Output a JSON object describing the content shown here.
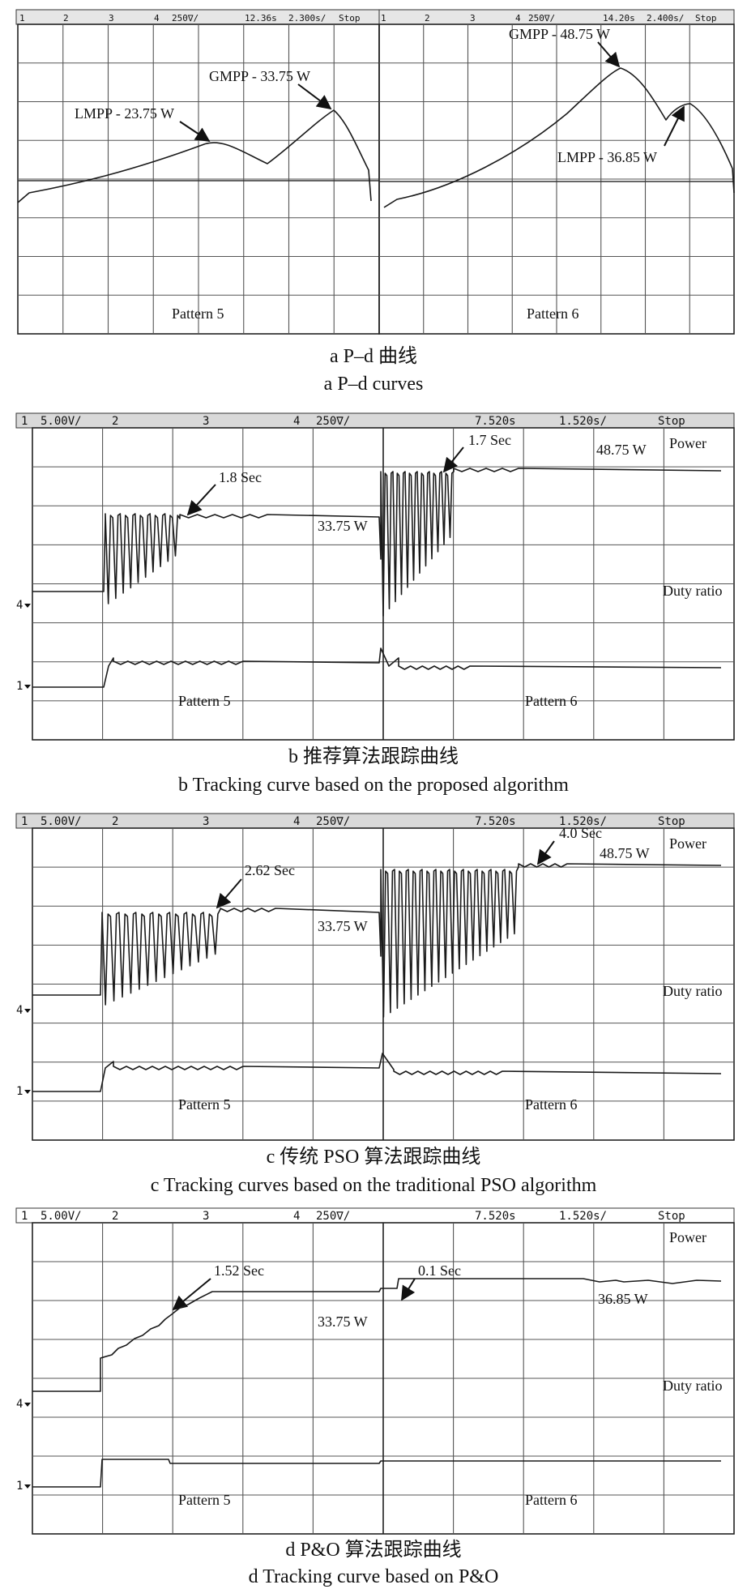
{
  "figure": {
    "a": {
      "caption_cn": "a  P–d 曲线",
      "caption_en": "a  P–d curves",
      "left_header": [
        "1",
        "2",
        "3",
        "4",
        "250∇/",
        "12.36s",
        "2.300s/",
        "Stop"
      ],
      "right_header": [
        "1",
        "2",
        "3",
        "4",
        "250∇/",
        "14.20s",
        "2.400s/",
        "Stop"
      ],
      "left_pattern": "Pattern 5",
      "right_pattern": "Pattern 6",
      "annotations": {
        "lmpp_left": "LMPP - 23.75 W",
        "gmpp_left": "GMPP - 33.75 W",
        "gmpp_right": "GMPP - 48.75 W",
        "lmpp_right": "LMPP - 36.85 W"
      }
    },
    "b": {
      "caption_cn": "b  推荐算法跟踪曲线",
      "caption_en": "b  Tracking curve based on the proposed algorithm",
      "pattern_left": "Pattern 5",
      "pattern_right": "Pattern 6",
      "time_left": "1.8 Sec",
      "time_right": "1.7 Sec",
      "power_left": "33.75 W",
      "power_right": "48.75 W"
    },
    "c": {
      "caption_cn": "c  传统 PSO 算法跟踪曲线",
      "caption_en": "c  Tracking curves based on the traditional PSO algorithm",
      "pattern_left": "Pattern 5",
      "pattern_right": "Pattern 6",
      "time_left": "2.62 Sec",
      "time_right": "4.0 Sec",
      "power_left": "33.75 W",
      "power_right": "48.75 W"
    },
    "d": {
      "caption_cn": "d  P&O 算法跟踪曲线",
      "caption_en": "d Tracking curve based on P&O",
      "pattern_left": "Pattern 5",
      "pattern_right": "Pattern 6",
      "time_left": "1.52 Sec",
      "time_right": "0.1 Sec",
      "power_left": "33.75 W",
      "power_right": "36.85 W"
    },
    "scope_header": [
      "1",
      "5.00V/",
      "2",
      "3",
      "4",
      "250∇/",
      "7.520s",
      "1.520s/",
      "Stop"
    ],
    "labels": {
      "power": "Power",
      "duty": "Duty ratio",
      "ch4": "4",
      "ch1": "1"
    }
  },
  "chart_data": [
    {
      "type": "line",
      "panel": "a-left",
      "title": "",
      "xlabel": "",
      "ylabel": "",
      "series": [
        {
          "name": "",
          "points": [
            {
              "label": "LMPP",
              "value": 23.75
            },
            {
              "label": "GMPP",
              "value": 33.75
            }
          ]
        }
      ],
      "grid": true
    },
    {
      "type": "line",
      "panel": "a-right",
      "title": "",
      "series": [
        {
          "name": "",
          "points": [
            {
              "label": "GMPP",
              "value": 48.75
            },
            {
              "label": "LMPP",
              "value": 36.85
            }
          ]
        }
      ],
      "grid": true
    },
    {
      "type": "line",
      "panel": "b",
      "series": [
        {
          "name": "Power",
          "steady_values_W": [
            33.75,
            48.75
          ],
          "tracking_time_s": [
            1.8,
            1.7
          ]
        },
        {
          "name": "Duty ratio"
        }
      ],
      "grid": true
    },
    {
      "type": "line",
      "panel": "c",
      "series": [
        {
          "name": "Power",
          "steady_values_W": [
            33.75,
            48.75
          ],
          "tracking_time_s": [
            2.62,
            4.0
          ]
        },
        {
          "name": "Duty ratio"
        }
      ],
      "grid": true
    },
    {
      "type": "line",
      "panel": "d",
      "series": [
        {
          "name": "Power",
          "steady_values_W": [
            33.75,
            36.85
          ],
          "tracking_time_s": [
            1.52,
            0.1
          ]
        },
        {
          "name": "Duty ratio"
        }
      ],
      "grid": true
    }
  ]
}
